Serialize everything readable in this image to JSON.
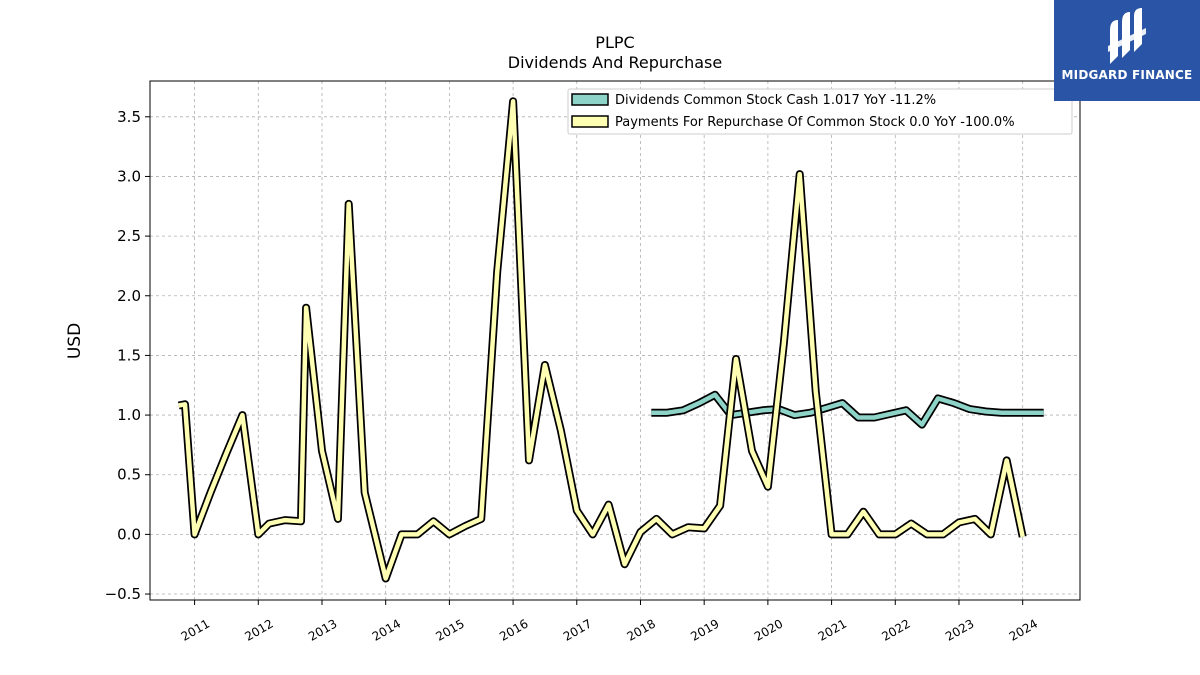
{
  "brand": {
    "name": "MIDGARD FINANCE",
    "color": "#2a55a6"
  },
  "chart_data": {
    "type": "line",
    "title": "PLPC",
    "subtitle": "Dividends And Repurchase",
    "xlabel": "",
    "ylabel": "USD",
    "ylim": [
      -0.55,
      3.8
    ],
    "xlim": [
      2010.3,
      2024.9
    ],
    "yticks": [
      -0.5,
      0.0,
      0.5,
      1.0,
      1.5,
      2.0,
      2.5,
      3.0,
      3.5
    ],
    "ytick_labels": [
      "−0.5",
      "0.0",
      "0.5",
      "1.0",
      "1.5",
      "2.0",
      "2.5",
      "3.0",
      "3.5"
    ],
    "xticks": [
      2011,
      2012,
      2013,
      2014,
      2015,
      2016,
      2017,
      2018,
      2019,
      2020,
      2021,
      2022,
      2023,
      2024
    ],
    "xtick_labels": [
      "2011",
      "2012",
      "2013",
      "2014",
      "2015",
      "2016",
      "2017",
      "2018",
      "2019",
      "2020",
      "2021",
      "2022",
      "2023",
      "2024"
    ],
    "grid": true,
    "legend_position": "top-right",
    "series": [
      {
        "name": "Dividends Common Stock Cash  1.017 YoY -11.2%",
        "color": "#8dd3c7",
        "points": [
          [
            2018.17,
            1.02
          ],
          [
            2018.42,
            1.02
          ],
          [
            2018.67,
            1.04
          ],
          [
            2018.92,
            1.1
          ],
          [
            2019.17,
            1.17
          ],
          [
            2019.42,
            1.0
          ],
          [
            2019.67,
            1.02
          ],
          [
            2019.92,
            1.04
          ],
          [
            2020.17,
            1.05
          ],
          [
            2020.42,
            1.0
          ],
          [
            2020.67,
            1.02
          ],
          [
            2020.92,
            1.06
          ],
          [
            2021.17,
            1.1
          ],
          [
            2021.42,
            0.98
          ],
          [
            2021.67,
            0.98
          ],
          [
            2021.92,
            1.01
          ],
          [
            2022.17,
            1.04
          ],
          [
            2022.42,
            0.92
          ],
          [
            2022.67,
            1.14
          ],
          [
            2022.92,
            1.1
          ],
          [
            2023.17,
            1.05
          ],
          [
            2023.42,
            1.03
          ],
          [
            2023.67,
            1.02
          ],
          [
            2023.92,
            1.02
          ],
          [
            2024.17,
            1.02
          ],
          [
            2024.33,
            1.02
          ]
        ]
      },
      {
        "name": "Payments For Repurchase Of Common Stock  0.0 YoY -100.0%",
        "color": "#ffffb3",
        "points": [
          [
            2010.75,
            1.08
          ],
          [
            2010.85,
            1.09
          ],
          [
            2011.0,
            0.0
          ],
          [
            2011.25,
            0.35
          ],
          [
            2011.5,
            0.68
          ],
          [
            2011.75,
            1.0
          ],
          [
            2012.0,
            0.0
          ],
          [
            2012.17,
            0.09
          ],
          [
            2012.42,
            0.12
          ],
          [
            2012.67,
            0.11
          ],
          [
            2012.75,
            1.9
          ],
          [
            2013.0,
            0.7
          ],
          [
            2013.25,
            0.13
          ],
          [
            2013.42,
            2.77
          ],
          [
            2013.67,
            0.35
          ],
          [
            2014.0,
            -0.37
          ],
          [
            2014.25,
            0.0
          ],
          [
            2014.5,
            0.0
          ],
          [
            2014.75,
            0.11
          ],
          [
            2015.0,
            0.0
          ],
          [
            2015.25,
            0.07
          ],
          [
            2015.5,
            0.13
          ],
          [
            2015.75,
            2.2
          ],
          [
            2016.0,
            3.63
          ],
          [
            2016.25,
            0.62
          ],
          [
            2016.5,
            1.42
          ],
          [
            2016.75,
            0.87
          ],
          [
            2017.0,
            0.2
          ],
          [
            2017.25,
            0.0
          ],
          [
            2017.5,
            0.25
          ],
          [
            2017.75,
            -0.25
          ],
          [
            2018.0,
            0.02
          ],
          [
            2018.25,
            0.13
          ],
          [
            2018.5,
            0.0
          ],
          [
            2018.75,
            0.06
          ],
          [
            2019.0,
            0.05
          ],
          [
            2019.25,
            0.24
          ],
          [
            2019.5,
            1.47
          ],
          [
            2019.75,
            0.7
          ],
          [
            2020.0,
            0.4
          ],
          [
            2020.25,
            1.6
          ],
          [
            2020.5,
            3.02
          ],
          [
            2020.75,
            1.2
          ],
          [
            2021.0,
            0.0
          ],
          [
            2021.25,
            0.0
          ],
          [
            2021.5,
            0.19
          ],
          [
            2021.75,
            0.0
          ],
          [
            2022.0,
            0.0
          ],
          [
            2022.25,
            0.09
          ],
          [
            2022.5,
            0.0
          ],
          [
            2022.75,
            0.0
          ],
          [
            2023.0,
            0.1
          ],
          [
            2023.25,
            0.13
          ],
          [
            2023.5,
            0.0
          ],
          [
            2023.75,
            0.62
          ],
          [
            2024.0,
            -0.02
          ]
        ]
      }
    ]
  }
}
